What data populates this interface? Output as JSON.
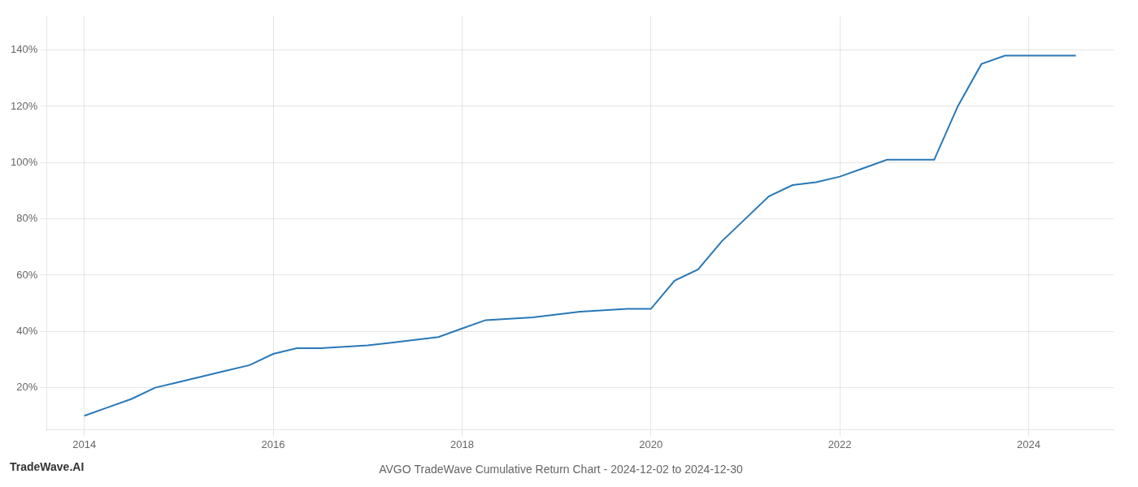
{
  "chart_data": {
    "type": "line",
    "title": "AVGO TradeWave Cumulative Return Chart - 2024-12-02 to 2024-12-30",
    "annotations": [
      "TradeWave.AI"
    ],
    "x": [
      2014.0,
      2014.25,
      2014.5,
      2014.75,
      2015.0,
      2015.25,
      2015.5,
      2015.75,
      2016.0,
      2016.25,
      2016.5,
      2016.75,
      2017.0,
      2017.25,
      2017.5,
      2017.75,
      2018.0,
      2018.25,
      2018.5,
      2018.75,
      2019.0,
      2019.25,
      2019.5,
      2019.75,
      2020.0,
      2020.25,
      2020.5,
      2020.75,
      2021.0,
      2021.25,
      2021.5,
      2021.75,
      2022.0,
      2022.25,
      2022.5,
      2022.75,
      2023.0,
      2023.25,
      2023.5,
      2023.75,
      2024.0,
      2024.25,
      2024.5
    ],
    "values": [
      10,
      13,
      16,
      20,
      22,
      24,
      26,
      28,
      32,
      34,
      34,
      34.5,
      35,
      36,
      37,
      38,
      41,
      44,
      44.5,
      45,
      46,
      47,
      47.5,
      48,
      48,
      58,
      62,
      72,
      80,
      88,
      92,
      93,
      95,
      98,
      101,
      101,
      101,
      120,
      135,
      138,
      138,
      138,
      138
    ],
    "color": "#2878b8",
    "xlim": [
      2013.6,
      2024.9
    ],
    "xticks": [
      2014,
      2016,
      2018,
      2020,
      2022,
      2024
    ],
    "ylim": [
      5,
      152
    ],
    "yticks": [
      {
        "value": 20,
        "label": "20%"
      },
      {
        "value": 40,
        "label": "40%"
      },
      {
        "value": 60,
        "label": "60%"
      },
      {
        "value": 80,
        "label": "80%"
      },
      {
        "value": 100,
        "label": "100%"
      },
      {
        "value": 120,
        "label": "120%"
      },
      {
        "value": 140,
        "label": "140%"
      }
    ],
    "grid": true
  }
}
